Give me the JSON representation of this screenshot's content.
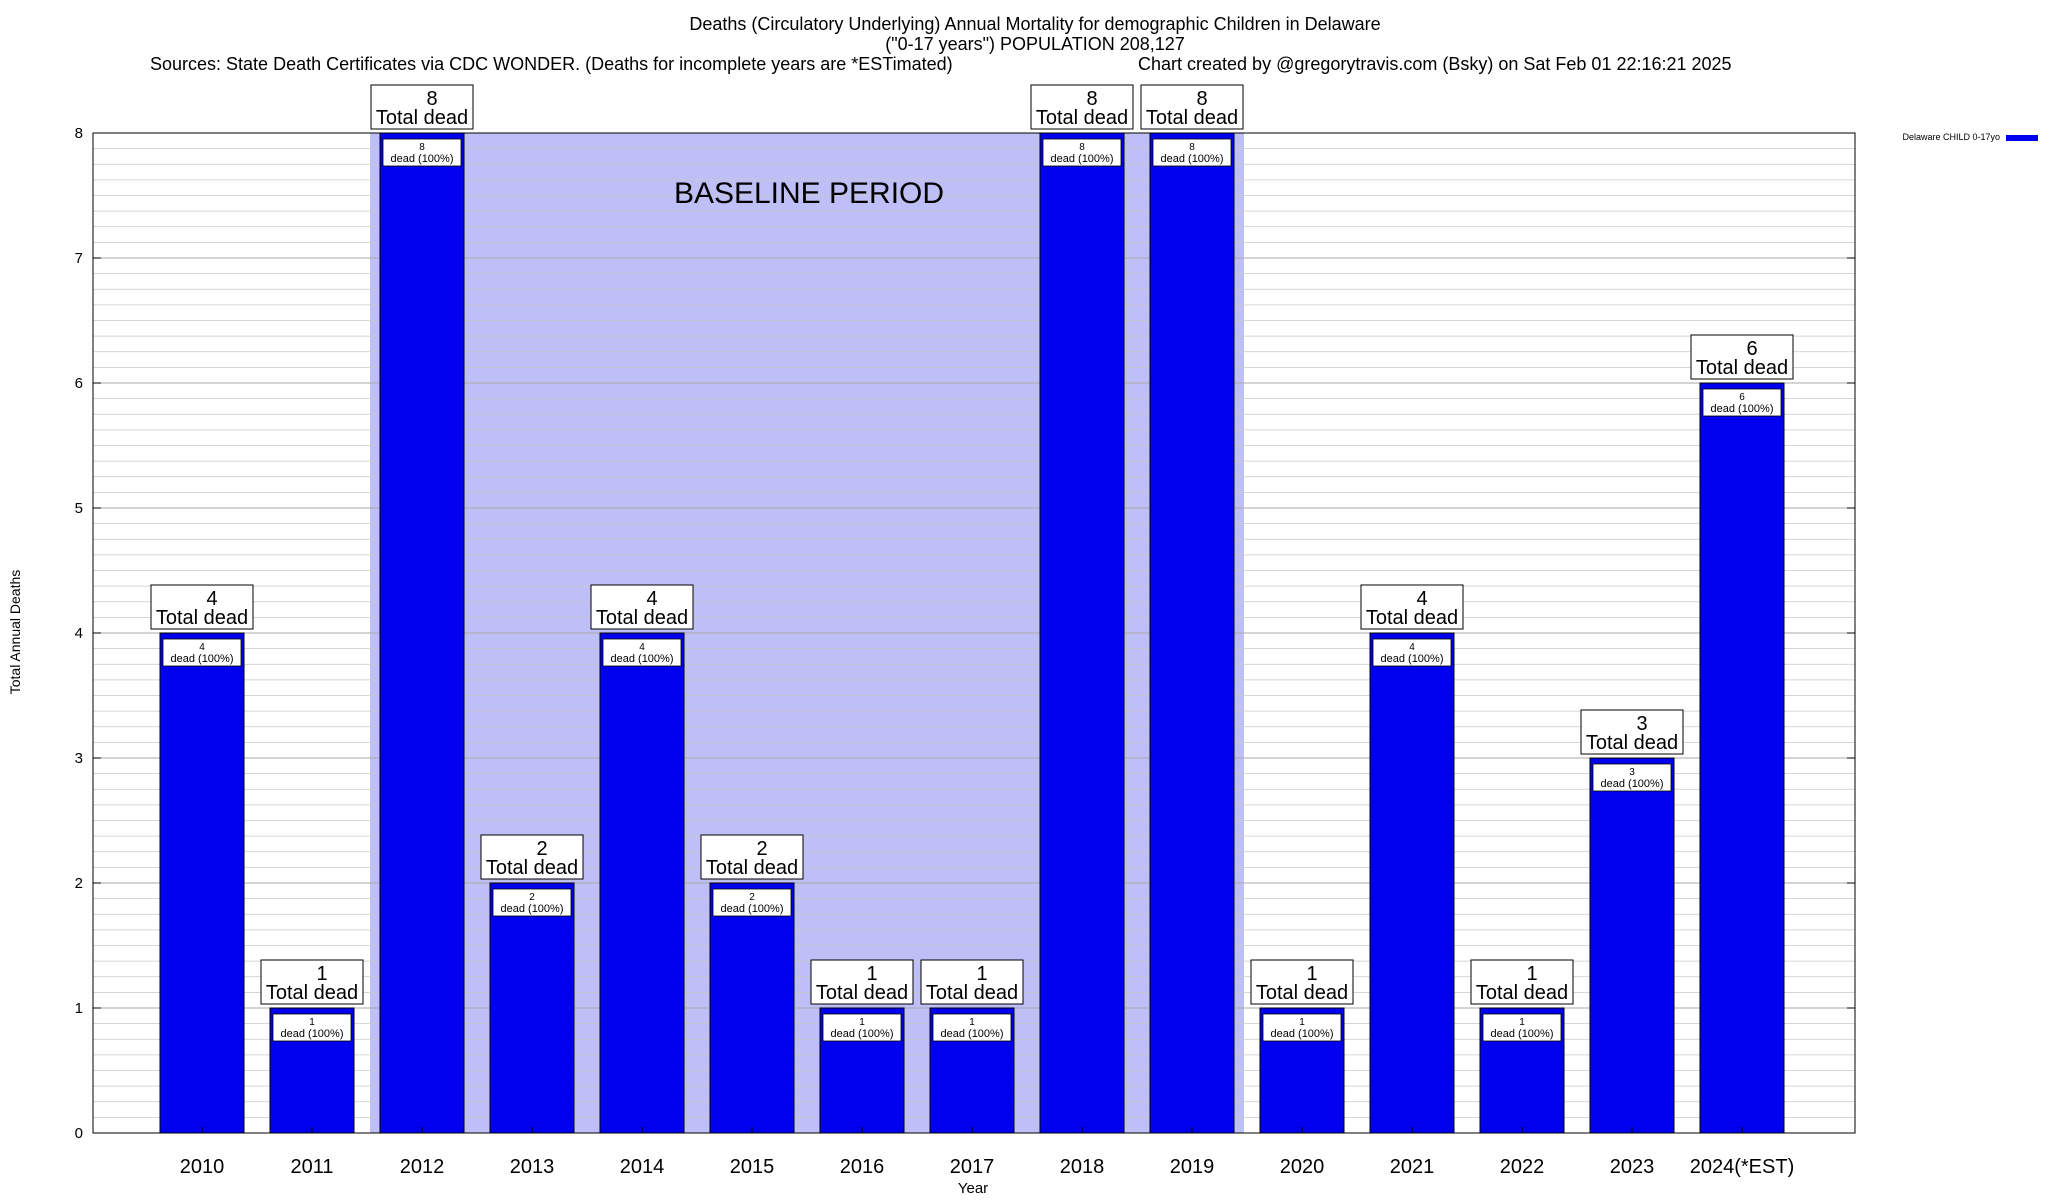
{
  "header": {
    "title_line1": "Deaths (Circulatory Underlying) Annual Mortality for demographic Children in Delaware",
    "title_line2": "(\"0-17 years\") POPULATION 208,127",
    "sources": "Sources: State Death Certificates via CDC WONDER. (Deaths for incomplete years are *ESTimated)",
    "credit": "Chart created by @gregorytravis.com (Bsky) on Sat Feb 01 22:16:21 2025"
  },
  "chart_data": {
    "type": "bar",
    "xlabel": "Year",
    "ylabel": "Total Annual Deaths",
    "ylim": [
      0,
      8
    ],
    "y_ticks": [
      "0",
      "1",
      "2",
      "3",
      "4",
      "5",
      "6",
      "7",
      "8"
    ],
    "minor_gridlines": true,
    "categories": [
      "2010",
      "2011",
      "2012",
      "2013",
      "2014",
      "2015",
      "2016",
      "2017",
      "2018",
      "2019",
      "2020",
      "2021",
      "2022",
      "2023",
      "2024(*EST)"
    ],
    "series": [
      {
        "name": "Delaware CHILD 0-17yo",
        "values": [
          4,
          1,
          8,
          2,
          4,
          2,
          1,
          1,
          8,
          8,
          1,
          4,
          1,
          3,
          6
        ]
      }
    ],
    "bar_label_suffix": "Total dead",
    "inner_label_suffix": "dead (100%)",
    "baseline_period": {
      "label": "BASELINE PERIOD",
      "from": "2012",
      "to": "2019"
    },
    "legend_position": "top-right",
    "colors": {
      "bar": "#0000ee",
      "baseline": "#bfbff8",
      "grid": "#c8c8c8"
    }
  }
}
